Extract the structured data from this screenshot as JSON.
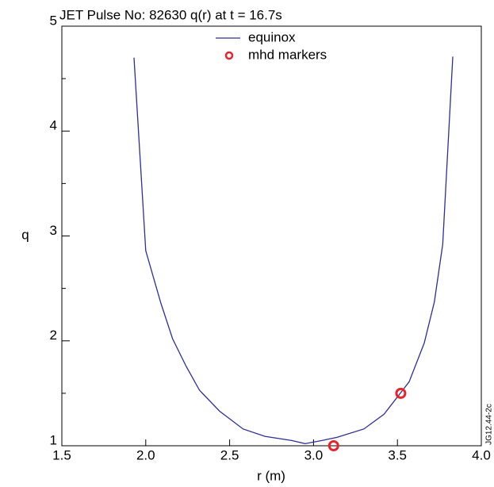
{
  "chart_data": {
    "type": "line",
    "title": "JET Pulse No: 82630 q(r) at t = 16.7s",
    "x_label": "r (m)",
    "y_label": "q",
    "figure_id": "JG12.44-2c",
    "series": [
      {
        "name": "equinox",
        "type": "line",
        "color": "#2e2e96",
        "x": [
          1.93,
          2.0,
          2.09,
          2.16,
          2.24,
          2.32,
          2.44,
          2.58,
          2.71,
          2.87,
          2.95,
          3.05,
          3.14,
          3.3,
          3.42,
          3.57,
          3.66,
          3.72,
          3.77,
          3.83
        ],
        "values": [
          4.7,
          2.86,
          2.36,
          2.02,
          1.76,
          1.53,
          1.33,
          1.16,
          1.09,
          1.05,
          1.02,
          1.05,
          1.08,
          1.16,
          1.3,
          1.61,
          1.98,
          2.37,
          2.92,
          4.71
        ]
      },
      {
        "name": "mhd markers",
        "type": "scatter",
        "color": "#e8232a",
        "x": [
          3.12,
          3.52
        ],
        "values": [
          1.0,
          1.5
        ]
      }
    ],
    "xlim": [
      1.5,
      4.0
    ],
    "xticks": [
      1.5,
      {
        "value": 2,
        "label": "2.0"
      },
      2.5,
      {
        "value": 3,
        "label": "3.0"
      },
      3.5,
      {
        "value": 4,
        "label": "4.0"
      }
    ],
    "ylim": [
      1,
      5
    ],
    "yticks": [
      1,
      2,
      3,
      4,
      5
    ],
    "yminorticks": [
      1.5,
      2.5,
      3.5,
      4.5
    ],
    "legend": "top-center",
    "grid": false
  }
}
